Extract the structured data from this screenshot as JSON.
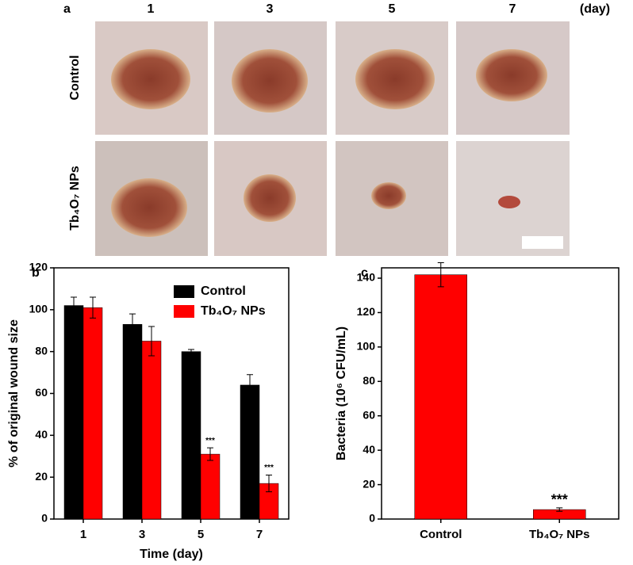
{
  "panel_a": {
    "label": "a",
    "days": [
      "1",
      "3",
      "5",
      "7"
    ],
    "day_unit": "(day)",
    "rows": [
      "Control",
      "Tb₄O₇ NPs"
    ]
  },
  "chart_data": [
    {
      "type": "bar",
      "panel_label": "b",
      "x_label": "Time (day)",
      "y_label": "% of original wound size",
      "categories": [
        "1",
        "3",
        "5",
        "7"
      ],
      "series": [
        {
          "name": "Control",
          "color": "#000000",
          "values": [
            102,
            93,
            80,
            64
          ],
          "errors": [
            4,
            5,
            1,
            5
          ],
          "annotations": [
            null,
            null,
            null,
            null
          ]
        },
        {
          "name": "Tb₄O₇ NPs",
          "color": "#ff0000",
          "values": [
            101,
            85,
            31,
            17
          ],
          "errors": [
            5,
            7,
            3,
            4
          ],
          "annotations": [
            null,
            null,
            "***",
            "***"
          ]
        }
      ],
      "ylim": [
        0,
        120
      ],
      "yticks": [
        0,
        20,
        40,
        60,
        80,
        100,
        120
      ],
      "legend": "top-right"
    },
    {
      "type": "bar",
      "panel_label": "c",
      "y_label": "Bacteria (10⁶ CFU/mL)",
      "categories": [
        "Control",
        "Tb₄O₇ NPs"
      ],
      "series": [
        {
          "color": "#ff0000",
          "values": [
            142,
            5.5
          ],
          "errors": [
            7,
            1
          ],
          "annotations": [
            null,
            "***"
          ]
        }
      ],
      "ylim": [
        0,
        146
      ],
      "yticks": [
        0,
        20,
        40,
        60,
        80,
        100,
        120,
        140
      ]
    }
  ]
}
